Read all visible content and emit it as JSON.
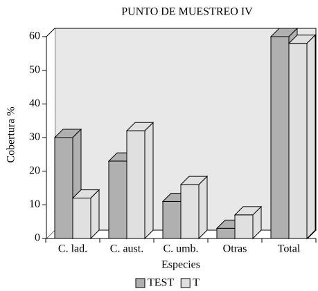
{
  "chart_data": {
    "type": "bar3d",
    "title": "PUNTO DE MUESTREO IV",
    "x_label": "Especies",
    "y_label": "Cobertura %",
    "categories": [
      "C. lad.",
      "C. aust.",
      "C. umb.",
      "Otras",
      "Total"
    ],
    "series": [
      {
        "name": "TEST",
        "color": "#b0b0b0",
        "values": [
          30,
          23,
          11,
          3,
          60
        ]
      },
      {
        "name": "T",
        "color": "#e0e0e0",
        "values": [
          12,
          32,
          16,
          7,
          58
        ]
      }
    ],
    "ylim": [
      0,
      60
    ],
    "yticks": [
      0,
      10,
      20,
      30,
      40,
      50,
      60
    ],
    "legend": "bottom"
  }
}
